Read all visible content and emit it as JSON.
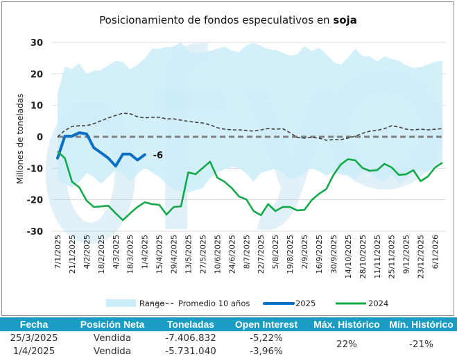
{
  "chart_data": {
    "type": "line",
    "title_prefix": "Posicionamiento de fondos especulativos en ",
    "title_bold": "soja",
    "ylabel": "Millones de toneladas",
    "xlabel": "",
    "ylim": [
      -30,
      30
    ],
    "yticks": [
      30,
      20,
      10,
      0,
      -10,
      -20,
      -30
    ],
    "grid": true,
    "watermark": "fyo",
    "xtick_labels": [
      "7/1/2025",
      "21/1/2025",
      "4/2/2025",
      "18/2/2025",
      "4/3/2025",
      "18/3/2025",
      "1/4/2025",
      "15/4/2025",
      "29/4/2025",
      "13/5/2025",
      "27/5/2025",
      "10/6/2025",
      "24/6/2025",
      "8/7/2025",
      "22/7/2025",
      "5/8/2025",
      "19/8/2025",
      "2/9/2025",
      "16/9/2025",
      "30/9/2025",
      "14/10/2025",
      "28/10/2025",
      "11/11/2025",
      "25/11/2025",
      "9/12/2025",
      "23/12/2025",
      "6/1/2026"
    ],
    "x_weeks_count": 54,
    "series": [
      {
        "name": "Rango",
        "kind": "band",
        "color": "#cbedf9",
        "upper": [
          13.6,
          22.3,
          21.6,
          23.4,
          19.9,
          21.0,
          21.2,
          22.7,
          24.1,
          23.8,
          21.4,
          22.9,
          24.9,
          28.0,
          28.0,
          28.5,
          28.7,
          30.0,
          27.2,
          26.5,
          26.9,
          27.2,
          28.0,
          28.7,
          27.4,
          26.9,
          29.1,
          29.8,
          28.9,
          27.8,
          27.6,
          26.7,
          25.8,
          26.1,
          28.9,
          27.2,
          28.3,
          26.3,
          23.8,
          22.9,
          25.2,
          28.0,
          25.6,
          25.6,
          23.8,
          25.6,
          24.7,
          24.1,
          22.7,
          21.9,
          22.1,
          23.0,
          23.8,
          24.1
        ],
        "lower": [
          -13.5,
          -15.0,
          -16.1,
          -14.3,
          -11.5,
          -12.8,
          -15.0,
          -12.6,
          -10.6,
          -11.9,
          -14.1,
          -11.9,
          -9.9,
          -11.3,
          -12.8,
          -15.0,
          -16.6,
          -17.4,
          -17.7,
          -17.0,
          -16.3,
          -13.2,
          -11.3,
          -10.4,
          -9.5,
          -9.9,
          -11.7,
          -14.3,
          -11.5,
          -10.8,
          -10.2,
          -11.3,
          -13.5,
          -12.8,
          -11.3,
          -9.9,
          -11.0,
          -12.4,
          -11.3,
          -12.1,
          -12.1,
          -13.5,
          -11.0,
          -11.7,
          -13.5,
          -14.3,
          -11.7,
          -15.0,
          -13.5,
          -10.6,
          -10.6,
          -11.3,
          -9.1,
          -7.7
        ]
      },
      {
        "name": "Promedio 10 años",
        "kind": "dashed",
        "color": "#404040",
        "values": [
          0.0,
          2.0,
          3.3,
          3.5,
          3.5,
          4.2,
          5.1,
          6.0,
          6.8,
          7.5,
          7.3,
          6.4,
          6.0,
          6.2,
          6.2,
          5.7,
          5.7,
          5.3,
          4.9,
          4.6,
          4.4,
          3.8,
          2.9,
          2.4,
          2.2,
          2.2,
          2.0,
          1.8,
          2.2,
          2.6,
          2.4,
          2.6,
          1.3,
          -0.2,
          -0.4,
          -0.2,
          -0.4,
          -1.1,
          -0.9,
          -0.9,
          -0.4,
          0.2,
          1.1,
          1.8,
          2.0,
          2.6,
          3.5,
          3.1,
          2.4,
          2.2,
          2.4,
          2.2,
          2.4,
          2.6
        ]
      },
      {
        "name": "2025",
        "kind": "line",
        "color": "#0a6fc2",
        "values": [
          -6.8,
          0.2,
          0.2,
          1.3,
          0.9,
          -3.5,
          -5.1,
          -6.8,
          -9.3,
          -5.5,
          -5.5,
          -7.4,
          -5.7
        ]
      },
      {
        "name": "2024",
        "kind": "line",
        "color": "#13a84a",
        "values": [
          -4.6,
          -6.8,
          -14.3,
          -16.1,
          -20.3,
          -22.3,
          -22.1,
          -21.9,
          -24.3,
          -26.5,
          -24.3,
          -22.3,
          -20.8,
          -21.4,
          -21.6,
          -24.7,
          -22.3,
          -22.1,
          -11.3,
          -11.9,
          -9.9,
          -7.9,
          -13.0,
          -14.3,
          -16.3,
          -19.0,
          -19.9,
          -23.6,
          -24.9,
          -21.4,
          -23.6,
          -22.3,
          -22.3,
          -23.4,
          -23.2,
          -20.1,
          -18.1,
          -16.6,
          -12.1,
          -8.8,
          -7.1,
          -7.5,
          -9.9,
          -10.8,
          -10.6,
          -8.6,
          -9.7,
          -12.1,
          -11.9,
          -10.6,
          -14.1,
          -12.6,
          -9.7,
          -8.2
        ]
      }
    ],
    "end_label": "-6",
    "legend": [
      "Rango",
      "Promedio 10 años",
      "2025",
      "2024"
    ],
    "legend_position": "bottom",
    "zero_line": {
      "style": "dashed",
      "color": "#808080"
    }
  },
  "table": {
    "headers": [
      "Fecha",
      "Posición Neta",
      "Toneladas",
      "Open Interest",
      "Máx. Histórico",
      "Mín. Histórico"
    ],
    "rows": [
      {
        "fecha": "25/3/2025",
        "posicion": "Vendida",
        "toneladas": "-7.406.832",
        "open_interest": "-5,22%"
      },
      {
        "fecha": "1/4/2025",
        "posicion": "Vendida",
        "toneladas": "-5.731.040",
        "open_interest": "-3,96%"
      }
    ],
    "max_historico": "22%",
    "min_historico": "-21%",
    "header_color": "#1a9cc4"
  }
}
